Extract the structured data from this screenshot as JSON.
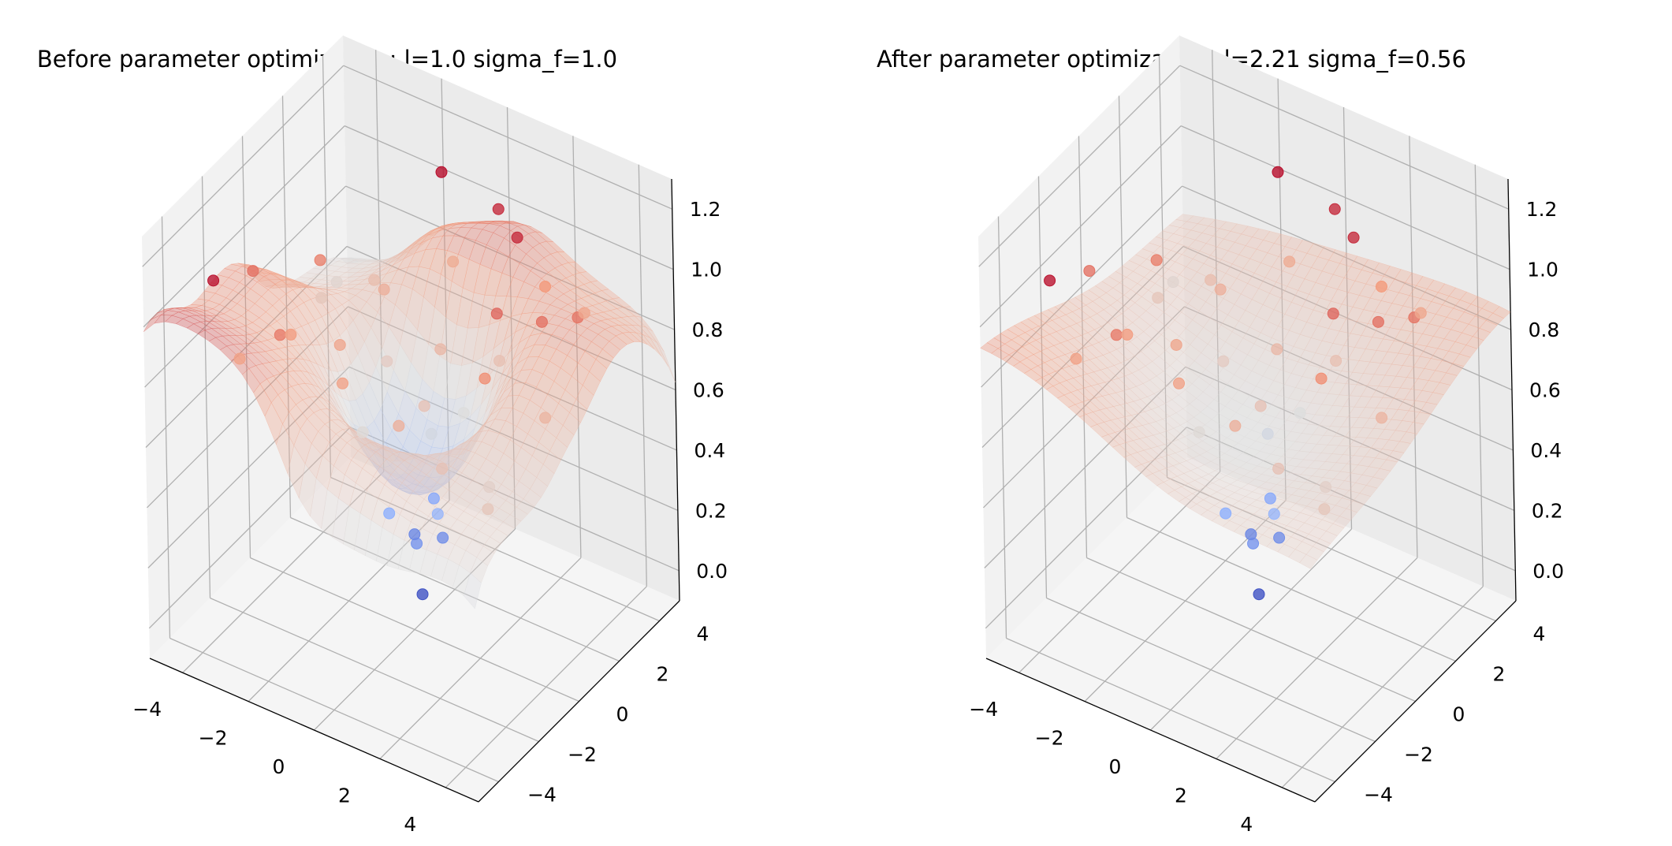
{
  "chart_data": [
    {
      "type": "surface3d-scatter",
      "title": "Before parameter optimization: l=1.0 sigma_f=1.0",
      "xlabel": "",
      "ylabel": "",
      "zlabel": "",
      "xlim": [
        -5,
        5
      ],
      "ylim": [
        -5,
        5
      ],
      "zlim": [
        -0.1,
        1.3
      ],
      "x_ticks": [
        "−4",
        "−2",
        "0",
        "2",
        "4"
      ],
      "y_ticks": [
        "−4",
        "−2",
        "0",
        "2",
        "4"
      ],
      "z_ticks": [
        "0.0",
        "0.2",
        "0.4",
        "0.6",
        "0.8",
        "1.0",
        "1.2"
      ],
      "colormap": "coolwarm",
      "surface": {
        "function": "gp_mean",
        "length_scale": 1.0,
        "sigma_f": 1.0
      },
      "points": [
        {
          "x": -3.4,
          "y": -4.1,
          "z": 1.17
        },
        {
          "x": -0.8,
          "y": 3.0,
          "z": 1.18
        },
        {
          "x": 0.8,
          "y": 3.2,
          "z": 1.12
        },
        {
          "x": 1.8,
          "y": 2.5,
          "z": 1.12
        },
        {
          "x": -4.0,
          "y": -1.2,
          "z": 0.98
        },
        {
          "x": -3.0,
          "y": 0.5,
          "z": 0.95
        },
        {
          "x": -2.2,
          "y": -2.8,
          "z": 0.96
        },
        {
          "x": 2.2,
          "y": 0.8,
          "z": 1.0
        },
        {
          "x": 3.2,
          "y": 1.4,
          "z": 0.98
        },
        {
          "x": 3.8,
          "y": 2.2,
          "z": 0.97
        },
        {
          "x": 2.8,
          "y": -0.8,
          "z": 0.92
        },
        {
          "x": -1.5,
          "y": -1.0,
          "z": 0.84
        },
        {
          "x": -0.5,
          "y": -2.5,
          "z": 0.86
        },
        {
          "x": 1.2,
          "y": -2.5,
          "z": 0.8
        },
        {
          "x": 0.2,
          "y": 1.2,
          "z": 0.76
        },
        {
          "x": -2.8,
          "y": 2.8,
          "z": 0.74
        },
        {
          "x": -3.8,
          "y": 1.8,
          "z": 0.7
        },
        {
          "x": 1.5,
          "y": 2.0,
          "z": 0.73
        },
        {
          "x": 2.5,
          "y": -2.5,
          "z": 0.72
        },
        {
          "x": 4.0,
          "y": 0.2,
          "z": 0.78
        },
        {
          "x": -1.2,
          "y": 0.8,
          "z": 0.68
        },
        {
          "x": 0.8,
          "y": -0.6,
          "z": 0.72
        },
        {
          "x": -4.2,
          "y": 3.2,
          "z": 0.64
        },
        {
          "x": 3.5,
          "y": -1.8,
          "z": 0.66
        },
        {
          "x": -2.0,
          "y": 2.0,
          "z": 0.8
        },
        {
          "x": 0.5,
          "y": 0.2,
          "z": 0.56
        },
        {
          "x": 1.0,
          "y": 1.0,
          "z": 0.6
        },
        {
          "x": -0.6,
          "y": -1.4,
          "z": 0.62
        },
        {
          "x": -2.5,
          "y": -1.8,
          "z": 0.88
        },
        {
          "x": 2.0,
          "y": 3.5,
          "z": 0.9
        },
        {
          "x": -3.2,
          "y": -3.2,
          "z": 0.86
        },
        {
          "x": 4.2,
          "y": -3.0,
          "z": 0.7
        },
        {
          "x": -1.0,
          "y": 3.8,
          "z": 0.82
        },
        {
          "x": 3.0,
          "y": 3.8,
          "z": 0.84
        },
        {
          "x": 0.3,
          "y": -0.3,
          "z": 0.22
        },
        {
          "x": -0.2,
          "y": 0.4,
          "z": 0.18
        },
        {
          "x": 0.6,
          "y": 0.5,
          "z": 0.2
        },
        {
          "x": -0.4,
          "y": -0.5,
          "z": 0.3
        },
        {
          "x": 0.1,
          "y": 0.9,
          "z": 0.28
        },
        {
          "x": 0.9,
          "y": -0.2,
          "z": 0.34
        },
        {
          "x": 0.2,
          "y": 0.1,
          "z": 0.02
        }
      ]
    },
    {
      "type": "surface3d-scatter",
      "title": "After parameter optimization: l=2.21 sigma_f=0.56",
      "xlabel": "",
      "ylabel": "",
      "zlabel": "",
      "xlim": [
        -5,
        5
      ],
      "ylim": [
        -5,
        5
      ],
      "zlim": [
        -0.1,
        1.3
      ],
      "x_ticks": [
        "−4",
        "−2",
        "0",
        "2",
        "4"
      ],
      "y_ticks": [
        "−4",
        "−2",
        "0",
        "2",
        "4"
      ],
      "z_ticks": [
        "0.0",
        "0.2",
        "0.4",
        "0.6",
        "0.8",
        "1.0",
        "1.2"
      ],
      "colormap": "coolwarm",
      "surface": {
        "function": "gp_mean",
        "length_scale": 2.21,
        "sigma_f": 0.56
      },
      "points": [
        {
          "x": -3.4,
          "y": -4.1,
          "z": 1.17
        },
        {
          "x": -0.8,
          "y": 3.0,
          "z": 1.18
        },
        {
          "x": 0.8,
          "y": 3.2,
          "z": 1.12
        },
        {
          "x": 1.8,
          "y": 2.5,
          "z": 1.12
        },
        {
          "x": -4.0,
          "y": -1.2,
          "z": 0.98
        },
        {
          "x": -3.0,
          "y": 0.5,
          "z": 0.95
        },
        {
          "x": -2.2,
          "y": -2.8,
          "z": 0.96
        },
        {
          "x": 2.2,
          "y": 0.8,
          "z": 1.0
        },
        {
          "x": 3.2,
          "y": 1.4,
          "z": 0.98
        },
        {
          "x": 3.8,
          "y": 2.2,
          "z": 0.97
        },
        {
          "x": 2.8,
          "y": -0.8,
          "z": 0.92
        },
        {
          "x": -1.5,
          "y": -1.0,
          "z": 0.84
        },
        {
          "x": -0.5,
          "y": -2.5,
          "z": 0.86
        },
        {
          "x": 1.2,
          "y": -2.5,
          "z": 0.8
        },
        {
          "x": 0.2,
          "y": 1.2,
          "z": 0.76
        },
        {
          "x": -2.8,
          "y": 2.8,
          "z": 0.74
        },
        {
          "x": -3.8,
          "y": 1.8,
          "z": 0.7
        },
        {
          "x": 1.5,
          "y": 2.0,
          "z": 0.73
        },
        {
          "x": 2.5,
          "y": -2.5,
          "z": 0.72
        },
        {
          "x": 4.0,
          "y": 0.2,
          "z": 0.78
        },
        {
          "x": -1.2,
          "y": 0.8,
          "z": 0.68
        },
        {
          "x": 0.8,
          "y": -0.6,
          "z": 0.72
        },
        {
          "x": -4.2,
          "y": 3.2,
          "z": 0.64
        },
        {
          "x": 3.5,
          "y": -1.8,
          "z": 0.66
        },
        {
          "x": -2.0,
          "y": 2.0,
          "z": 0.8
        },
        {
          "x": 0.5,
          "y": 0.2,
          "z": 0.56
        },
        {
          "x": 1.0,
          "y": 1.0,
          "z": 0.6
        },
        {
          "x": -0.6,
          "y": -1.4,
          "z": 0.62
        },
        {
          "x": -2.5,
          "y": -1.8,
          "z": 0.88
        },
        {
          "x": 2.0,
          "y": 3.5,
          "z": 0.9
        },
        {
          "x": -3.2,
          "y": -3.2,
          "z": 0.86
        },
        {
          "x": 4.2,
          "y": -3.0,
          "z": 0.7
        },
        {
          "x": -1.0,
          "y": 3.8,
          "z": 0.82
        },
        {
          "x": 3.0,
          "y": 3.8,
          "z": 0.84
        },
        {
          "x": 0.3,
          "y": -0.3,
          "z": 0.22
        },
        {
          "x": -0.2,
          "y": 0.4,
          "z": 0.18
        },
        {
          "x": 0.6,
          "y": 0.5,
          "z": 0.2
        },
        {
          "x": -0.4,
          "y": -0.5,
          "z": 0.3
        },
        {
          "x": 0.1,
          "y": 0.9,
          "z": 0.28
        },
        {
          "x": 0.9,
          "y": -0.2,
          "z": 0.34
        },
        {
          "x": 0.2,
          "y": 0.1,
          "z": 0.02
        }
      ]
    }
  ]
}
